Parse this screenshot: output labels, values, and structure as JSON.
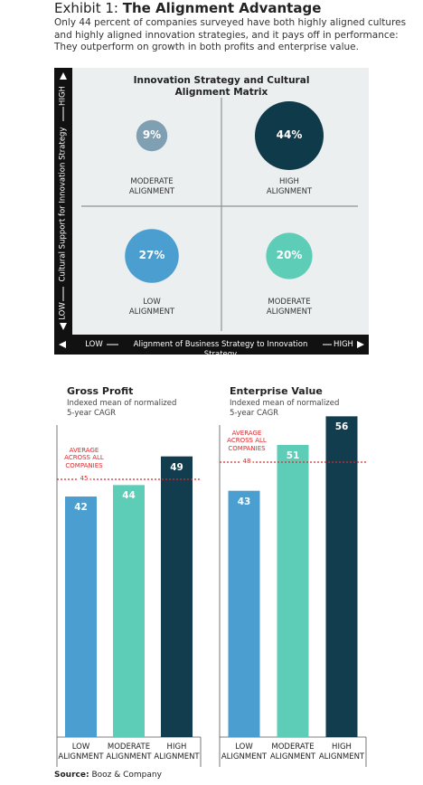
{
  "header": {
    "exhibit": "Exhibit 1:",
    "title": "The Alignment Advantage",
    "description": "Only 44 percent of companies surveyed have both highly aligned cultures\nand highly aligned innovation strategies, and it pays off in performance:\nThey outperform on growth in both profits and enterprise value."
  },
  "chart_data": [
    {
      "type": "bubble_matrix",
      "title": "Innovation Strategy and Cultural Alignment Matrix",
      "y_label": "Cultural Support for Innovation Strategy",
      "y_low": "LOW",
      "y_high": "HIGH",
      "x_label": "Alignment of Business Strategy to Innovation Strategy",
      "x_low": "LOW",
      "x_high": "HIGH",
      "categories": [
        "MODERATE\nALIGNMENT",
        "HIGH\nALIGNMENT",
        "LOW\nALIGNMENT",
        "MODERATE\nALIGNMENT"
      ],
      "values": [
        9,
        44,
        27,
        20
      ],
      "value_labels": [
        "9%",
        "44%",
        "27%",
        "20%"
      ],
      "colors": [
        "#7f9fb2",
        "#0f3a4a",
        "#4a9fd0",
        "#5ecdb8"
      ]
    },
    {
      "type": "bar",
      "title": "Gross Profit",
      "subtitle": "Indexed mean of normalized\n5-year CAGR",
      "categories": [
        "LOW\nALIGNMENT",
        "MODERATE\nALIGNMENT",
        "HIGH\nALIGNMENT"
      ],
      "values": [
        42,
        44,
        49
      ],
      "colors": [
        "#4a9fd0",
        "#5ecdb8",
        "#123d4e"
      ],
      "ylim": [
        0,
        60
      ],
      "reference_line": {
        "value": 45,
        "label": "AVERAGE\nACROSS ALL\nCOMPANIES",
        "color": "#e3262b"
      }
    },
    {
      "type": "bar",
      "title": "Enterprise Value",
      "subtitle": "Indexed mean of normalized\n5-year CAGR",
      "categories": [
        "LOW\nALIGNMENT",
        "MODERATE\nALIGNMENT",
        "HIGH\nALIGNMENT"
      ],
      "values": [
        43,
        51,
        56
      ],
      "colors": [
        "#4a9fd0",
        "#5ecdb8",
        "#123d4e"
      ],
      "ylim": [
        0,
        60
      ],
      "reference_line": {
        "value": 48,
        "label": "AVERAGE\nACROSS ALL\nCOMPANIES",
        "color": "#e3262b"
      }
    }
  ],
  "source": {
    "label": "Source:",
    "text": "Booz & Company"
  }
}
